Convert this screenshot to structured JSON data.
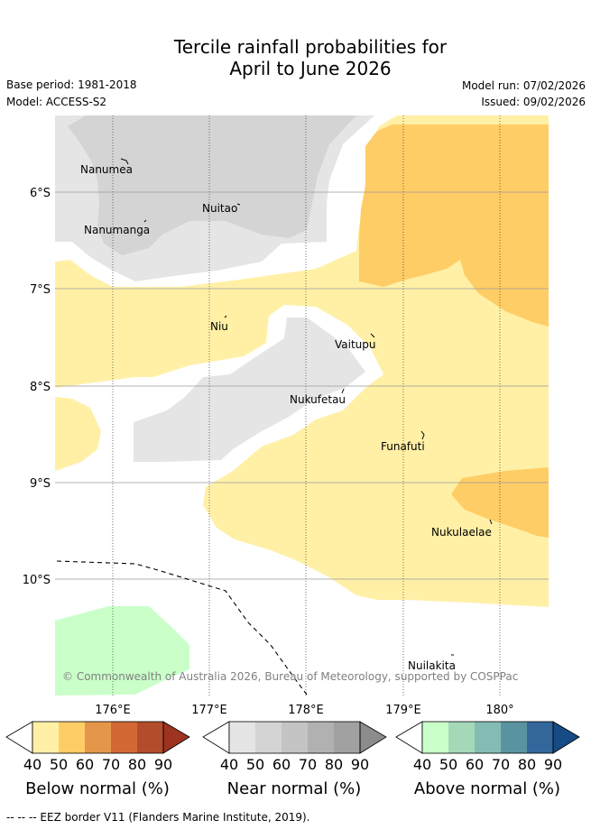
{
  "header": {
    "title_line1": "Tercile rainfall probabilities for",
    "title_line2": "April to June 2026",
    "base_period": "Base period: 1981-2018",
    "model": "Model: ACCESS-S2",
    "model_run": "Model run: 07/02/2026",
    "issued": "Issued: 09/02/2026"
  },
  "map": {
    "lon_ticks": [
      "176°E",
      "177°E",
      "178°E",
      "179°E",
      "180°"
    ],
    "lat_ticks": [
      "6°S",
      "7°S",
      "8°S",
      "9°S",
      "10°S"
    ],
    "places": [
      {
        "name": "Nanumea"
      },
      {
        "name": "Nuitao"
      },
      {
        "name": "Nanumanga"
      },
      {
        "name": "Niu"
      },
      {
        "name": "Vaitupu"
      },
      {
        "name": "Nukufetau"
      },
      {
        "name": "Funafuti"
      },
      {
        "name": "Nukulaelae"
      },
      {
        "name": "Nuilakita"
      }
    ],
    "copyright": "© Commonwealth of Australia 2026, Bureau of Meteorology, supported by COSPPac",
    "colors": {
      "below_40": "#fff0a6",
      "below_50": "#ffcd66",
      "near_40": "#e5e5e5",
      "near_50": "#d4d4d4",
      "above_40": "#caffca"
    }
  },
  "legend": {
    "bars": [
      {
        "name": "below",
        "label": "Below normal (%)",
        "colors": [
          "#fff0a6",
          "#ffcd66",
          "#e4974a",
          "#d36834",
          "#b24d2c",
          "#9e3320"
        ]
      },
      {
        "name": "near",
        "label": "Near normal (%)",
        "colors": [
          "#e5e5e5",
          "#d4d4d4",
          "#c4c4c4",
          "#b1b1b1",
          "#a1a1a1",
          "#8c8c8c"
        ]
      },
      {
        "name": "above",
        "label": "Above normal (%)",
        "colors": [
          "#caffca",
          "#a4d8b8",
          "#84bcb4",
          "#5a93a0",
          "#33679c",
          "#174b86"
        ]
      }
    ],
    "ticks": [
      "40",
      "50",
      "60",
      "70",
      "80",
      "90"
    ]
  },
  "footer": "--  --  -- EEZ border V11 (Flanders Marine Institute, 2019)."
}
